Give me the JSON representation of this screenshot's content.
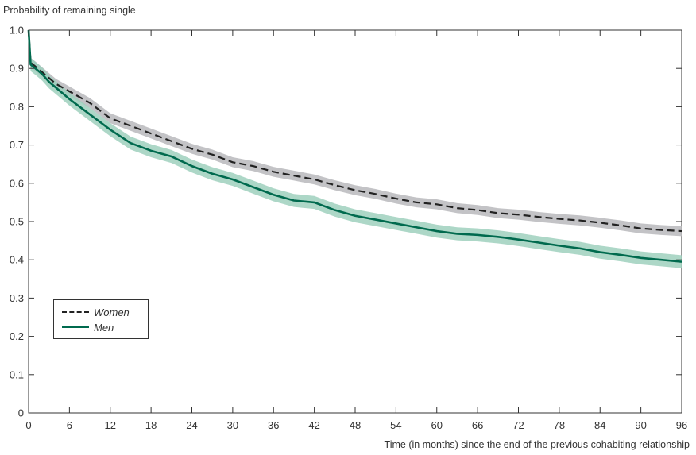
{
  "chart_data": {
    "type": "line",
    "ylabel": "Probability of remaining single",
    "xlabel": "Time (in months) since the end of the previous cohabiting relationship",
    "xlim": [
      0,
      96
    ],
    "ylim": [
      0,
      1.0
    ],
    "x_ticks": [
      "0",
      "6",
      "12",
      "18",
      "24",
      "30",
      "36",
      "42",
      "48",
      "54",
      "60",
      "66",
      "72",
      "78",
      "84",
      "90",
      "96"
    ],
    "y_ticks": [
      "0",
      "0.1",
      "0.2",
      "0.3",
      "0.4",
      "0.5",
      "0.6",
      "0.7",
      "0.8",
      "0.9",
      "1.0"
    ],
    "grid": false,
    "legend_position": "bottom-left",
    "series": [
      {
        "name": "Women",
        "style": "dashed",
        "color": "#222222",
        "band_color": "#b8b8bc",
        "x": [
          0,
          0.3,
          1,
          2,
          3,
          4,
          6,
          9,
          12,
          15,
          18,
          21,
          24,
          27,
          30,
          33,
          36,
          39,
          42,
          45,
          48,
          51,
          54,
          57,
          60,
          63,
          66,
          69,
          72,
          75,
          78,
          81,
          84,
          87,
          90,
          93,
          96
        ],
        "y": [
          1.0,
          0.915,
          0.905,
          0.89,
          0.875,
          0.86,
          0.84,
          0.81,
          0.77,
          0.75,
          0.73,
          0.71,
          0.69,
          0.675,
          0.655,
          0.645,
          0.63,
          0.62,
          0.61,
          0.595,
          0.582,
          0.572,
          0.56,
          0.55,
          0.545,
          0.535,
          0.53,
          0.522,
          0.518,
          0.512,
          0.507,
          0.503,
          0.497,
          0.49,
          0.482,
          0.478,
          0.475
        ],
        "ci_halfwidth": 0.013
      },
      {
        "name": "Men",
        "style": "solid",
        "color": "#006a4e",
        "band_color": "#9fd0bd",
        "x": [
          0,
          0.3,
          1,
          2,
          3,
          4,
          6,
          9,
          12,
          15,
          18,
          21,
          24,
          27,
          30,
          33,
          36,
          39,
          42,
          45,
          48,
          51,
          54,
          57,
          60,
          63,
          66,
          69,
          72,
          75,
          78,
          81,
          84,
          87,
          90,
          93,
          96
        ],
        "y": [
          1.0,
          0.91,
          0.9,
          0.885,
          0.865,
          0.85,
          0.82,
          0.78,
          0.74,
          0.705,
          0.685,
          0.67,
          0.645,
          0.625,
          0.61,
          0.59,
          0.57,
          0.555,
          0.55,
          0.53,
          0.515,
          0.505,
          0.495,
          0.485,
          0.475,
          0.468,
          0.465,
          0.46,
          0.453,
          0.445,
          0.437,
          0.43,
          0.42,
          0.413,
          0.405,
          0.4,
          0.395
        ],
        "ci_halfwidth": 0.017
      }
    ]
  }
}
